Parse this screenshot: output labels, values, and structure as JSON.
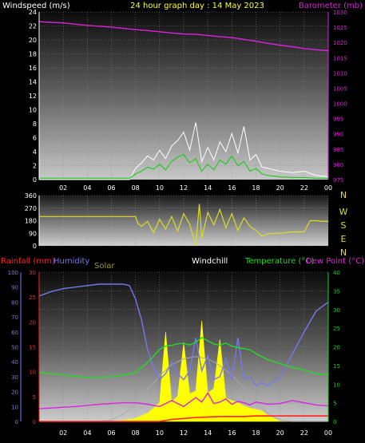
{
  "header": {
    "left_label": "Windspeed (m/s)",
    "center_label": "24 hour graph day : 14 May 2023",
    "right_label": "Barometer (mb)"
  },
  "colors": {
    "background": "#000000",
    "wind_avg": "#22cc22",
    "wind_gust": "#ffffff",
    "barometer": "#dd22dd",
    "direction": "#dddd22",
    "rain": "#ff2222",
    "humidity": "#7777ee",
    "solar_fill": "#ffff00",
    "solar_theory": "#aaaaaa",
    "windchill": "#ffffff",
    "temperature": "#22dd22",
    "dewpoint": "#dd22dd",
    "direction_letters": "#dddd22",
    "left_axis_temp": "#ee22ee",
    "right_axis_temp": "#22cc22"
  },
  "chart_data": [
    {
      "type": "line",
      "id": "wind_baro",
      "title": "",
      "xlabel": "",
      "x_ticks": [
        "02",
        "04",
        "06",
        "08",
        "10",
        "12",
        "14",
        "16",
        "18",
        "20",
        "22",
        "00"
      ],
      "xlim": [
        0,
        24
      ],
      "ylabel_left": "Windspeed (m/s)",
      "ylim_left": [
        0,
        24
      ],
      "y_ticks_left": [
        "0",
        "2",
        "4",
        "6",
        "8",
        "10",
        "12",
        "14",
        "16",
        "18",
        "20",
        "22",
        "24"
      ],
      "ylabel_right": "Barometer (mb)",
      "ylim_right": [
        975,
        1030
      ],
      "y_ticks_right": [
        "975",
        "980",
        "985",
        "990",
        "995",
        "1000",
        "1005",
        "1010",
        "1015",
        "1020",
        "1025",
        "1030"
      ],
      "series": [
        {
          "axis": "right",
          "x": [
            0,
            1,
            2,
            3,
            4,
            5,
            6,
            7,
            8,
            9,
            10,
            11,
            12,
            13,
            14,
            15,
            16,
            17,
            18,
            19,
            20,
            21,
            22,
            23,
            24
          ],
          "values": [
            1026.8,
            1026.6,
            1026.4,
            1026.0,
            1025.6,
            1025.3,
            1025.0,
            1024.6,
            1024.2,
            1023.9,
            1023.5,
            1023.1,
            1022.8,
            1022.7,
            1022.3,
            1021.9,
            1021.6,
            1021.0,
            1020.4,
            1019.7,
            1019.1,
            1018.6,
            1018.0,
            1017.6,
            1017.3
          ]
        },
        {
          "axis": "left",
          "x": [
            0,
            2,
            4,
            6,
            7.5,
            8,
            8.5,
            9,
            9.5,
            10,
            10.5,
            11,
            11.5,
            12,
            12.5,
            13,
            13.5,
            14,
            14.5,
            15,
            15.5,
            16,
            16.5,
            17,
            17.5,
            18,
            18.5,
            19,
            20,
            21,
            22,
            23,
            24
          ],
          "values": [
            0.2,
            0.2,
            0.2,
            0.2,
            0.2,
            0.8,
            1.2,
            1.8,
            1.5,
            2.2,
            1.4,
            2.6,
            3.2,
            3.6,
            2.4,
            3.0,
            1.2,
            2.2,
            1.4,
            2.8,
            2.2,
            3.4,
            2.0,
            2.6,
            1.2,
            1.6,
            0.8,
            0.6,
            0.4,
            0.3,
            0.3,
            0.2,
            0.2
          ]
        },
        {
          "axis": "left",
          "x": [
            0,
            2,
            4,
            6,
            7.5,
            8,
            8.5,
            9,
            9.5,
            10,
            10.5,
            11,
            11.5,
            12,
            12.5,
            13,
            13.5,
            14,
            14.5,
            15,
            15.5,
            16,
            16.5,
            17,
            17.5,
            18,
            18.5,
            19,
            20,
            21,
            22,
            23,
            24
          ],
          "values": [
            0,
            0,
            0,
            0,
            0,
            1.6,
            2.4,
            3.4,
            2.8,
            4.2,
            3.0,
            4.8,
            5.6,
            6.8,
            4.2,
            8.2,
            2.6,
            4.6,
            2.8,
            5.4,
            4.0,
            6.6,
            3.8,
            7.6,
            2.8,
            3.6,
            1.8,
            1.6,
            1.2,
            1.0,
            1.2,
            0.6,
            0.4
          ]
        }
      ]
    },
    {
      "type": "line",
      "id": "direction",
      "title": "",
      "xlim": [
        0,
        24
      ],
      "ylim_left": [
        0,
        360
      ],
      "y_ticks_left": [
        "0",
        "90",
        "180",
        "270",
        "360"
      ],
      "direction_labels": [
        "N",
        "W",
        "S",
        "E",
        "N"
      ],
      "series": [
        {
          "x": [
            0,
            1,
            2,
            3,
            4,
            5,
            6,
            7,
            8,
            8.2,
            8.5,
            9,
            9.5,
            10,
            10.5,
            11,
            11.5,
            12,
            12.5,
            13,
            13.3,
            13.5,
            14,
            14.5,
            15,
            15.5,
            16,
            16.5,
            17,
            17.5,
            18,
            18.5,
            19,
            19.5,
            20,
            21,
            22,
            22.5,
            23,
            23.5,
            24
          ],
          "values": [
            210,
            210,
            210,
            210,
            210,
            210,
            210,
            210,
            210,
            160,
            140,
            175,
            95,
            190,
            120,
            210,
            105,
            230,
            155,
            0,
            300,
            55,
            240,
            150,
            260,
            130,
            230,
            110,
            200,
            140,
            110,
            70,
            85,
            90,
            90,
            100,
            100,
            180,
            180,
            175,
            175
          ]
        }
      ]
    },
    {
      "type": "line",
      "id": "temp_hum_rain_solar",
      "title": "",
      "x_ticks": [
        "02",
        "04",
        "06",
        "08",
        "10",
        "12",
        "14",
        "16",
        "18",
        "20",
        "22",
        "00"
      ],
      "xlim": [
        0,
        24
      ],
      "ylabel_left_outer": "Rainfall (mm)",
      "y_ticks_left_outer": [
        "0",
        "5",
        "10",
        "15",
        "20",
        "25",
        "30"
      ],
      "ylim_left_outer": [
        0,
        30
      ],
      "ylabel_left_inner": "Humidity",
      "y_ticks_left_inner": [
        "0",
        "10",
        "20",
        "30",
        "40",
        "50",
        "60",
        "70",
        "80",
        "90",
        "100"
      ],
      "ylim_left_inner": [
        0,
        100
      ],
      "ylabel_solar": "Solar",
      "ylabel_windchill": "Windchill",
      "ylabel_right": "Temperature (°C)",
      "ylabel_right2": "Dew Point (°C)",
      "y_ticks_right": [
        "0",
        "5",
        "10",
        "15",
        "20",
        "25",
        "30",
        "35",
        "40"
      ],
      "ylim_right": [
        0,
        40
      ],
      "series": [
        {
          "axis": "humidity",
          "x": [
            0,
            1,
            2,
            3,
            4,
            5,
            6,
            7,
            7.5,
            8,
            8.5,
            9,
            9.5,
            10,
            10.5,
            11,
            11.5,
            12,
            12.5,
            13,
            13.5,
            14,
            14.5,
            15,
            15.5,
            16,
            16.5,
            17,
            17.5,
            18,
            18.5,
            19,
            20,
            21,
            22,
            23,
            24
          ],
          "values": [
            84,
            87,
            89,
            90,
            91,
            92,
            92,
            92,
            91,
            82,
            68,
            48,
            36,
            28,
            32,
            40,
            32,
            28,
            34,
            56,
            34,
            44,
            28,
            30,
            42,
            28,
            56,
            28,
            30,
            24,
            26,
            24,
            30,
            45,
            60,
            74,
            80
          ]
        },
        {
          "axis": "temp",
          "x": [
            0,
            1,
            2,
            3,
            4,
            5,
            6,
            7,
            8,
            9,
            9.5,
            10,
            10.5,
            11,
            11.5,
            12,
            12.5,
            13,
            13.5,
            14,
            14.5,
            15,
            15.5,
            16,
            16.5,
            17,
            17.5,
            18,
            19,
            20,
            21,
            22,
            23,
            24
          ],
          "values": [
            13.2,
            12.8,
            12.5,
            12.1,
            11.8,
            11.9,
            12.0,
            12.4,
            13.2,
            15.8,
            17.5,
            19.3,
            20.2,
            20.4,
            20.8,
            21.0,
            20.5,
            21.2,
            22.5,
            21.6,
            20.8,
            20.4,
            21.0,
            20.2,
            19.8,
            19.5,
            19.2,
            18.2,
            16.5,
            15.5,
            14.5,
            13.8,
            12.8,
            12.6
          ]
        },
        {
          "axis": "dewpoint",
          "x": [
            0,
            1,
            2,
            3,
            4,
            5,
            6,
            7,
            8,
            9,
            9.5,
            10,
            10.5,
            11,
            11.5,
            12,
            12.5,
            13,
            13.5,
            14,
            14.5,
            15,
            15.5,
            16,
            16.5,
            17,
            17.5,
            18,
            19,
            20,
            21,
            22,
            23,
            24
          ],
          "values": [
            3.4,
            3.6,
            3.8,
            4.0,
            4.3,
            4.6,
            4.8,
            5.0,
            5.0,
            4.6,
            4.3,
            4.0,
            4.8,
            5.6,
            4.8,
            4.0,
            5.2,
            6.4,
            5.2,
            7.6,
            4.8,
            5.2,
            6.0,
            4.6,
            5.4,
            5.0,
            4.4,
            5.2,
            4.6,
            4.8,
            5.6,
            5.0,
            4.4,
            4.2
          ]
        },
        {
          "axis": "solar",
          "x": [
            0,
            6,
            7,
            8,
            9,
            9.5,
            10,
            10.5,
            11,
            11.5,
            12,
            12.5,
            13,
            13.5,
            14,
            14.5,
            15,
            15.5,
            16,
            16.5,
            17,
            17.5,
            18,
            18.5,
            19,
            19.5,
            20,
            24
          ],
          "values": [
            0,
            0,
            0.3,
            0.8,
            2.2,
            3.6,
            5.0,
            24.0,
            5.2,
            6.8,
            21.0,
            7.4,
            8.2,
            27.0,
            7.6,
            8.8,
            22.0,
            6.2,
            5.6,
            5.0,
            4.2,
            3.6,
            3.2,
            2.8,
            1.6,
            0.8,
            0,
            0
          ]
        },
        {
          "axis": "solar",
          "x": [
            0,
            5,
            6,
            7,
            8,
            9,
            10,
            11,
            12,
            13,
            14,
            15,
            16,
            17,
            18,
            19,
            20,
            21,
            22,
            24
          ],
          "values": [
            0,
            0,
            0.4,
            2.0,
            4.8,
            8.5,
            12.2,
            15.2,
            16.8,
            17.4,
            16.8,
            15.0,
            12.4,
            9.0,
            5.2,
            2.0,
            0.4,
            0,
            0,
            0
          ]
        },
        {
          "axis": "rain",
          "x": [
            0,
            2,
            4,
            6,
            8,
            10,
            10.5,
            11,
            12,
            13,
            14,
            15,
            16,
            17,
            18,
            19,
            20,
            21,
            22,
            23,
            24
          ],
          "values": [
            0,
            0,
            0,
            0,
            0,
            0,
            0.2,
            0.4,
            0.6,
            0.8,
            0.9,
            1.0,
            1.0,
            1.0,
            1.1,
            1.1,
            1.1,
            1.1,
            1.1,
            1.1,
            1.1
          ]
        }
      ]
    }
  ]
}
